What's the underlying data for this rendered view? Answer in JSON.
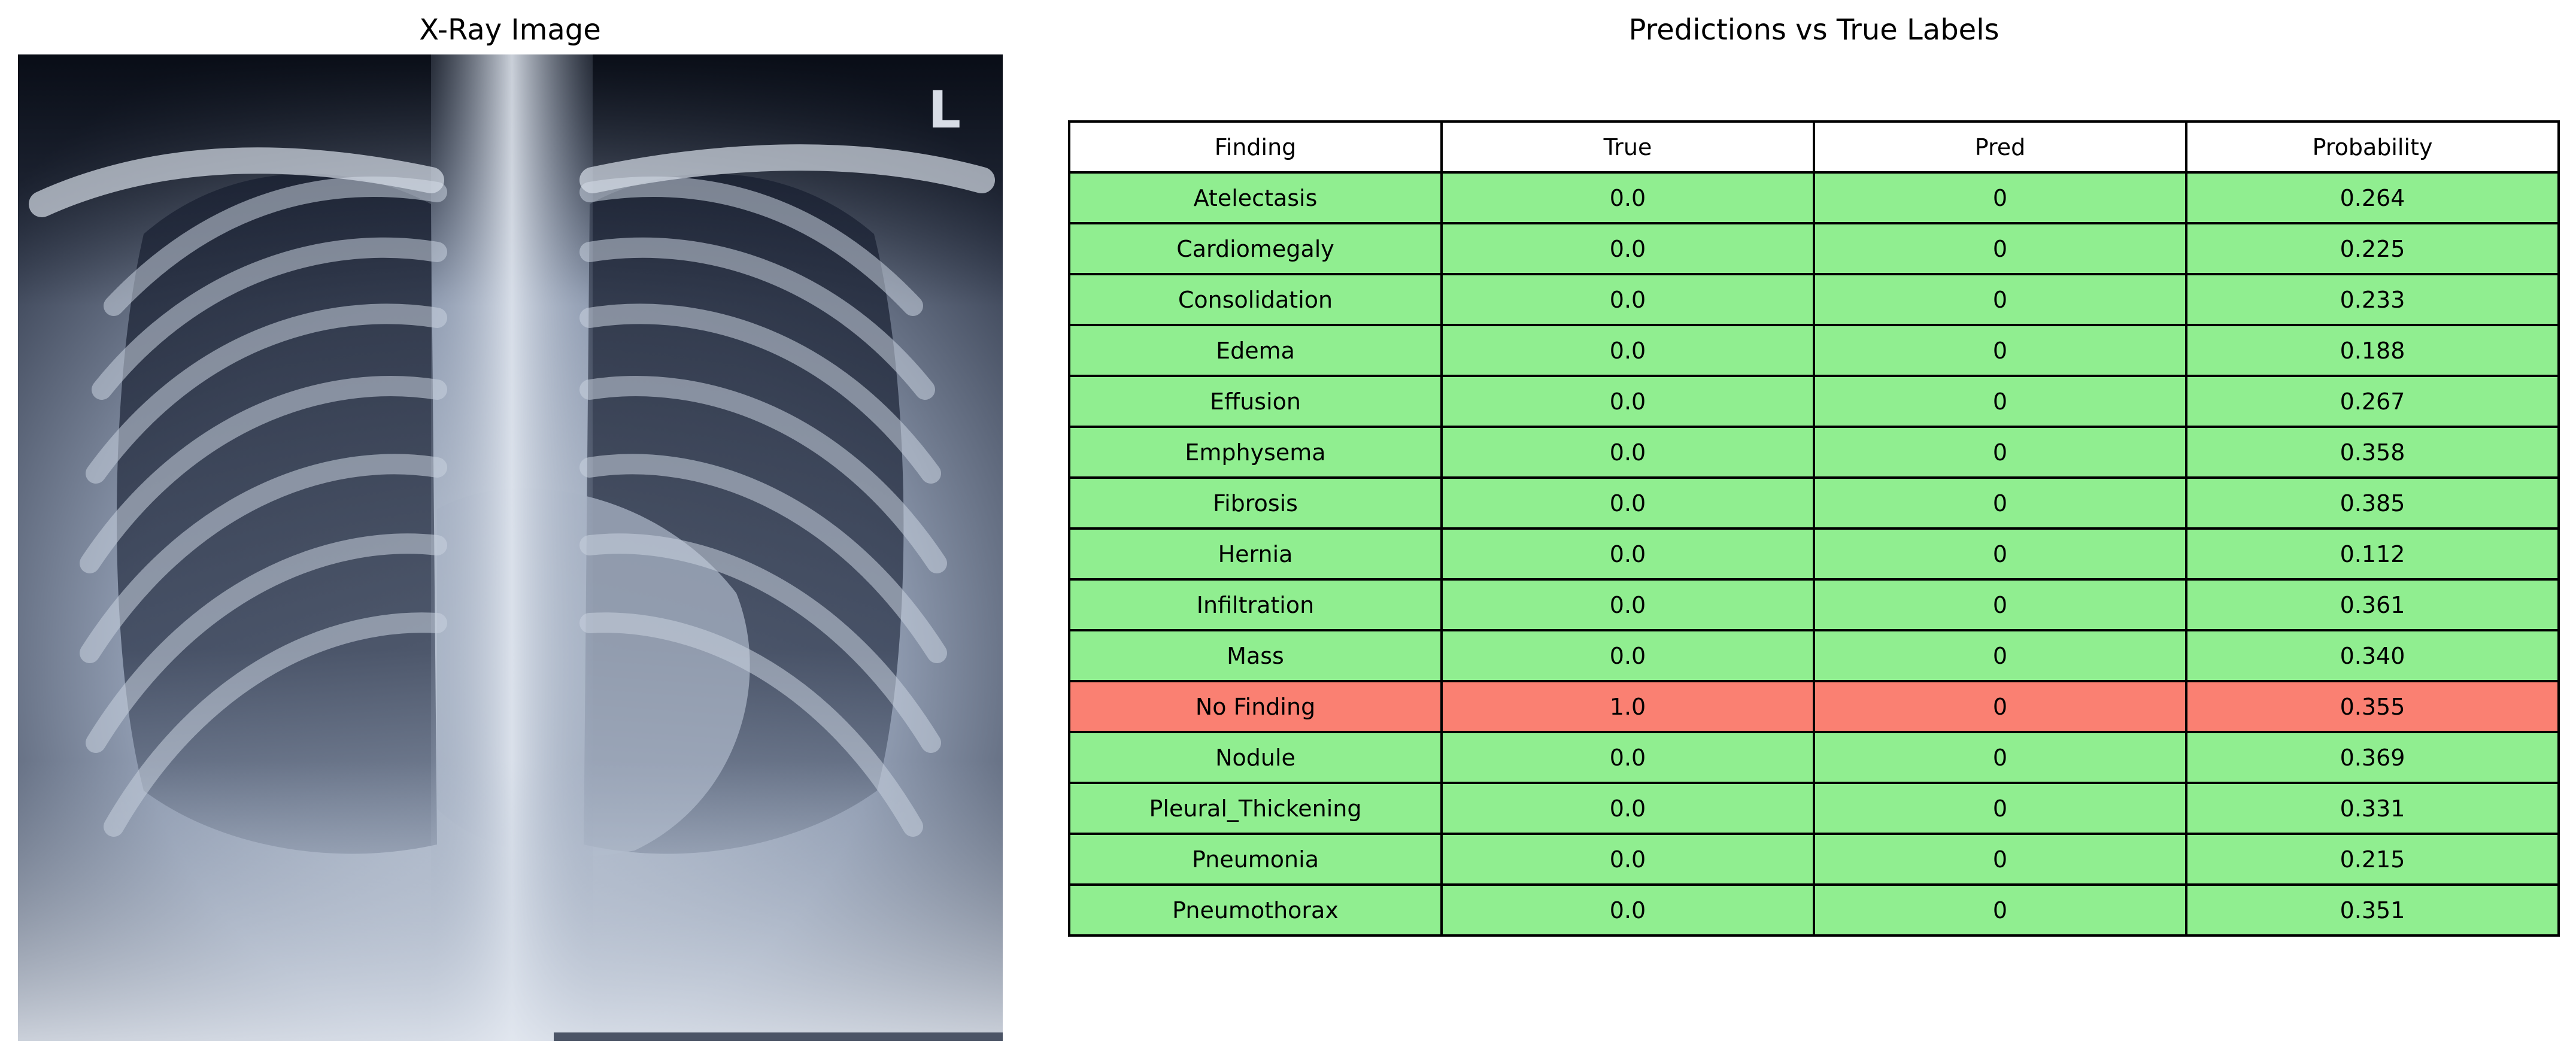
{
  "left_panel": {
    "title": "X-Ray Image",
    "marker": "L"
  },
  "right_panel": {
    "title": "Predictions vs True Labels",
    "columns": [
      "Finding",
      "True",
      "Pred",
      "Probability"
    ],
    "rows": [
      {
        "finding": "Atelectasis",
        "true": "0.0",
        "pred": "0",
        "probability": "0.264",
        "status": "match"
      },
      {
        "finding": "Cardiomegaly",
        "true": "0.0",
        "pred": "0",
        "probability": "0.225",
        "status": "match"
      },
      {
        "finding": "Consolidation",
        "true": "0.0",
        "pred": "0",
        "probability": "0.233",
        "status": "match"
      },
      {
        "finding": "Edema",
        "true": "0.0",
        "pred": "0",
        "probability": "0.188",
        "status": "match"
      },
      {
        "finding": "Effusion",
        "true": "0.0",
        "pred": "0",
        "probability": "0.267",
        "status": "match"
      },
      {
        "finding": "Emphysema",
        "true": "0.0",
        "pred": "0",
        "probability": "0.358",
        "status": "match"
      },
      {
        "finding": "Fibrosis",
        "true": "0.0",
        "pred": "0",
        "probability": "0.385",
        "status": "match"
      },
      {
        "finding": "Hernia",
        "true": "0.0",
        "pred": "0",
        "probability": "0.112",
        "status": "match"
      },
      {
        "finding": "Infiltration",
        "true": "0.0",
        "pred": "0",
        "probability": "0.361",
        "status": "match"
      },
      {
        "finding": "Mass",
        "true": "0.0",
        "pred": "0",
        "probability": "0.340",
        "status": "match"
      },
      {
        "finding": "No Finding",
        "true": "1.0",
        "pred": "0",
        "probability": "0.355",
        "status": "mismatch"
      },
      {
        "finding": "Nodule",
        "true": "0.0",
        "pred": "0",
        "probability": "0.369",
        "status": "match"
      },
      {
        "finding": "Pleural_Thickening",
        "true": "0.0",
        "pred": "0",
        "probability": "0.331",
        "status": "match"
      },
      {
        "finding": "Pneumonia",
        "true": "0.0",
        "pred": "0",
        "probability": "0.215",
        "status": "match"
      },
      {
        "finding": "Pneumothorax",
        "true": "0.0",
        "pred": "0",
        "probability": "0.351",
        "status": "match"
      }
    ]
  },
  "colors": {
    "match": "#90ee90",
    "mismatch": "#fa8072",
    "header": "#ffffff"
  }
}
